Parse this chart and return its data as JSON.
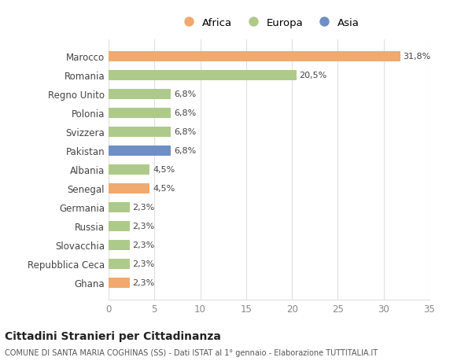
{
  "categories": [
    "Marocco",
    "Romania",
    "Regno Unito",
    "Polonia",
    "Svizzera",
    "Pakistan",
    "Albania",
    "Senegal",
    "Germania",
    "Russia",
    "Slovacchia",
    "Repubblica Ceca",
    "Ghana"
  ],
  "values": [
    31.8,
    20.5,
    6.8,
    6.8,
    6.8,
    6.8,
    4.5,
    4.5,
    2.3,
    2.3,
    2.3,
    2.3,
    2.3
  ],
  "labels": [
    "31,8%",
    "20,5%",
    "6,8%",
    "6,8%",
    "6,8%",
    "6,8%",
    "4,5%",
    "4,5%",
    "2,3%",
    "2,3%",
    "2,3%",
    "2,3%",
    "2,3%"
  ],
  "colors": [
    "#F2A96E",
    "#AECA8A",
    "#AECA8A",
    "#AECA8A",
    "#AECA8A",
    "#6E8FC4",
    "#AECA8A",
    "#F2A96E",
    "#AECA8A",
    "#AECA8A",
    "#AECA8A",
    "#AECA8A",
    "#F2A96E"
  ],
  "legend_labels": [
    "Africa",
    "Europa",
    "Asia"
  ],
  "legend_colors": [
    "#F2A96E",
    "#AECA8A",
    "#6E8FC4"
  ],
  "title": "Cittadini Stranieri per Cittadinanza",
  "subtitle": "COMUNE DI SANTA MARIA COGHINAS (SS) - Dati ISTAT al 1° gennaio - Elaborazione TUTTITALIA.IT",
  "xlim": [
    0,
    35
  ],
  "xticks": [
    0,
    5,
    10,
    15,
    20,
    25,
    30,
    35
  ],
  "background_color": "#ffffff",
  "grid_color": "#e0e0e0"
}
